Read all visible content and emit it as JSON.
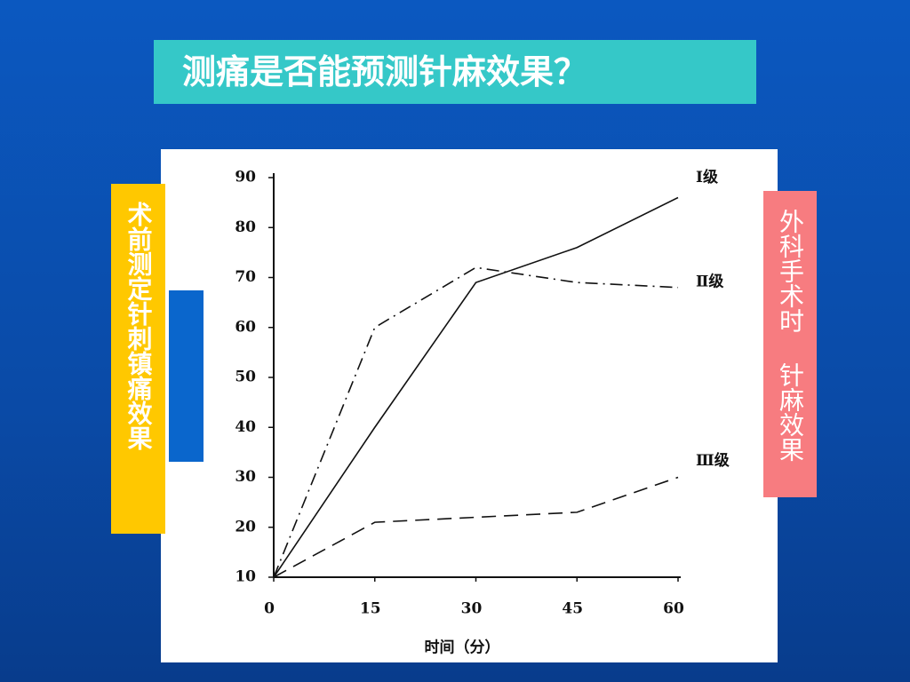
{
  "slide": {
    "title": "测痛是否能预测针麻效果？",
    "left_label": "术前测定针刺镇痛效果",
    "right_label": "外科手术时 针麻效果"
  },
  "chart_data": {
    "type": "line",
    "x": [
      0,
      15,
      30,
      45,
      60
    ],
    "xlabel": "时间（分）",
    "xlim": [
      0,
      60
    ],
    "xticks": [
      0,
      15,
      30,
      45,
      60
    ],
    "ylim": [
      10,
      90
    ],
    "yticks": [
      10,
      20,
      30,
      40,
      50,
      60,
      70,
      80,
      90
    ],
    "series": [
      {
        "name": "Ⅰ级",
        "color": "#111111",
        "style": "solid",
        "values": [
          10,
          40,
          69,
          76,
          86
        ]
      },
      {
        "name": "Ⅱ级",
        "color": "#111111",
        "style": "dashdot",
        "values": [
          10,
          60,
          72,
          69,
          68
        ]
      },
      {
        "name": "Ⅲ级",
        "color": "#111111",
        "style": "dashed",
        "values": [
          10,
          21,
          22,
          23,
          30
        ]
      }
    ]
  }
}
